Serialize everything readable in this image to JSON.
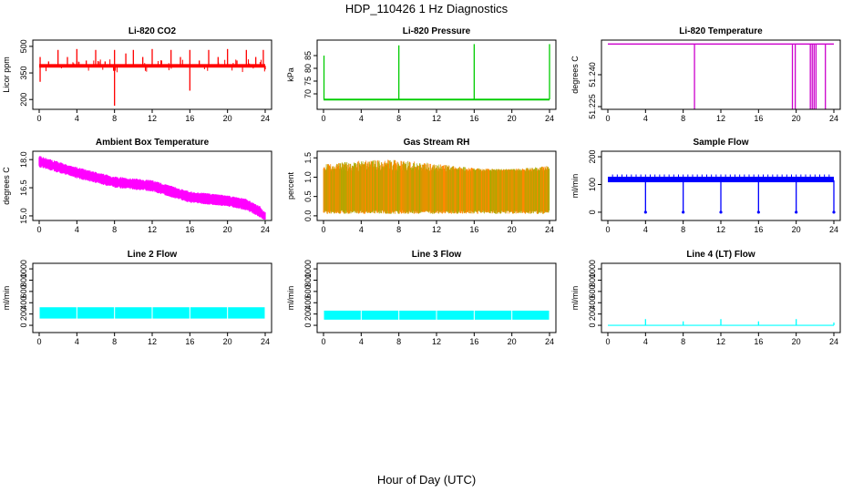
{
  "figure": {
    "title": "HDP_110426  1 Hz Diagnostics",
    "xlabel": "Hour of Day (UTC)"
  },
  "chart_data": [
    {
      "type": "line",
      "title": "Li-820 CO2",
      "ylabel": "Licor ppm",
      "color": "#ff0000",
      "xlim": [
        0,
        24
      ],
      "xticks": [
        0,
        4,
        8,
        12,
        16,
        20,
        24
      ],
      "xtick_labels": [
        "0",
        "4",
        "8",
        "12",
        "16",
        "20",
        "24"
      ],
      "ylim": [
        160,
        520
      ],
      "yticks": [
        200,
        350,
        500
      ],
      "ytick_labels": [
        "200",
        "350",
        "500"
      ],
      "series": [
        {
          "name": "CO2",
          "base": 390,
          "band": [
            380,
            400
          ],
          "spikes": [
            [
              0.1,
              300
            ],
            [
              0.1,
              440
            ],
            [
              1.0,
              415
            ],
            [
              2.0,
              480
            ],
            [
              3.0,
              440
            ],
            [
              4.0,
              485
            ],
            [
              5.0,
              420
            ],
            [
              6.0,
              480
            ],
            [
              7.0,
              415
            ],
            [
              8.0,
              480
            ],
            [
              8.0,
              165
            ],
            [
              9.2,
              460
            ],
            [
              10.0,
              480
            ],
            [
              11.0,
              440
            ],
            [
              12.0,
              485
            ],
            [
              13.0,
              420
            ],
            [
              14.0,
              480
            ],
            [
              15.0,
              440
            ],
            [
              16.0,
              480
            ],
            [
              16.0,
              250
            ],
            [
              17.0,
              420
            ],
            [
              18.0,
              480
            ],
            [
              19.0,
              440
            ],
            [
              20.0,
              485
            ],
            [
              21.0,
              420
            ],
            [
              22.0,
              480
            ],
            [
              23.0,
              440
            ],
            [
              23.8,
              480
            ],
            [
              24.0,
              370
            ]
          ]
        }
      ]
    },
    {
      "type": "line",
      "title": "Li-820 Pressure",
      "ylabel": "kPa",
      "color": "#00cc00",
      "xlim": [
        0,
        24
      ],
      "xticks": [
        0,
        4,
        8,
        12,
        16,
        20,
        24
      ],
      "xtick_labels": [
        "0",
        "4",
        "8",
        "12",
        "16",
        "20",
        "24"
      ],
      "ylim": [
        65,
        90
      ],
      "yticks": [
        70,
        75,
        80,
        85
      ],
      "ytick_labels": [
        "70",
        "75",
        "80",
        "85"
      ],
      "series": [
        {
          "name": "Pressure",
          "base": 67.8,
          "band": [
            67.4,
            68.1
          ],
          "spikes": [
            [
              0.05,
              85
            ],
            [
              8.0,
              89
            ],
            [
              16.0,
              89.5
            ],
            [
              24.0,
              89.5
            ]
          ]
        }
      ]
    },
    {
      "type": "line",
      "title": "Li-820 Temperature",
      "ylabel": "degrees C",
      "color": "#cc00cc",
      "xlim": [
        0,
        24
      ],
      "xticks": [
        0,
        4,
        8,
        12,
        16,
        20,
        24
      ],
      "xtick_labels": [
        "0",
        "4",
        "8",
        "12",
        "16",
        "20",
        "24"
      ],
      "ylim": [
        51.225,
        51.255
      ],
      "yticks": [
        51.225,
        51.24
      ],
      "ytick_labels": [
        "51.225",
        "51.240"
      ],
      "series": [
        {
          "name": "Temperature",
          "base": 51.2544,
          "drops": [
            9.2,
            19.6,
            19.9,
            21.5,
            21.7,
            21.9,
            22.1,
            23.1
          ]
        }
      ]
    },
    {
      "type": "line",
      "title": "Ambient Box Temperature",
      "ylabel": "degrees C",
      "color": "#ff00ff",
      "xlim": [
        0,
        24
      ],
      "xticks": [
        0,
        4,
        8,
        12,
        16,
        20,
        24
      ],
      "xtick_labels": [
        "0",
        "4",
        "8",
        "12",
        "16",
        "20",
        "24"
      ],
      "ylim": [
        14.9,
        18.3
      ],
      "yticks": [
        15.0,
        16.5,
        18.0
      ],
      "ytick_labels": [
        "15.0",
        "16.5",
        "18.0"
      ],
      "series": [
        {
          "name": "Box Temp",
          "trend": [
            [
              0,
              17.9
            ],
            [
              4,
              17.3
            ],
            [
              8,
              16.8
            ],
            [
              12,
              16.6
            ],
            [
              16,
              16.0
            ],
            [
              20,
              15.8
            ],
            [
              22,
              15.6
            ],
            [
              23.5,
              15.2
            ],
            [
              24,
              14.9
            ]
          ],
          "halfwidth": 0.3
        }
      ]
    },
    {
      "type": "line",
      "title": "Gas Stream RH",
      "ylabel": "percent",
      "color": "#ff8800",
      "xlim": [
        0,
        24
      ],
      "xticks": [
        0,
        4,
        8,
        12,
        16,
        20,
        24
      ],
      "xtick_labels": [
        "0",
        "4",
        "8",
        "12",
        "16",
        "20",
        "24"
      ],
      "ylim": [
        -0.05,
        1.6
      ],
      "yticks": [
        0.0,
        0.5,
        1.0,
        1.5
      ],
      "ytick_labels": [
        "0.0",
        "0.5",
        "1.0",
        "1.5"
      ],
      "series": [
        {
          "name": "RH",
          "band": [
            0.15,
            1.15
          ],
          "secondary_color": "#aaaa00"
        }
      ]
    },
    {
      "type": "line",
      "title": "Sample Flow",
      "ylabel": "ml/min",
      "color": "#0000ff",
      "xlim": [
        0,
        24
      ],
      "xticks": [
        0,
        4,
        8,
        12,
        16,
        20,
        24
      ],
      "xtick_labels": [
        "0",
        "4",
        "8",
        "12",
        "16",
        "20",
        "24"
      ],
      "ylim": [
        -20,
        210
      ],
      "yticks": [
        0,
        100,
        200
      ],
      "ytick_labels": [
        "0",
        "100",
        "200"
      ],
      "series": [
        {
          "name": "Sample Flow",
          "base": 115,
          "band": [
            108,
            128
          ],
          "drops": [
            4.0,
            8.0,
            12.0,
            16.0,
            20.0,
            24.0
          ]
        }
      ]
    },
    {
      "type": "line",
      "title": "Line 2 Flow",
      "ylabel": "ml/min",
      "color": "#00ffff",
      "xlim": [
        0,
        24
      ],
      "xticks": [
        0,
        4,
        8,
        12,
        16,
        20,
        24
      ],
      "xtick_labels": [
        "0",
        "4",
        "8",
        "12",
        "16",
        "20",
        "24"
      ],
      "ylim": [
        -80,
        1050
      ],
      "yticks": [
        0,
        200,
        400,
        600,
        800,
        1000
      ],
      "ytick_labels": [
        "0",
        "200",
        "400",
        "600",
        "800",
        "1000"
      ],
      "series": [
        {
          "name": "Line 2",
          "band": [
            120,
            320
          ],
          "gaps": [
            4.0,
            8.0,
            12.0,
            16.0,
            20.0
          ]
        }
      ]
    },
    {
      "type": "line",
      "title": "Line 3 Flow",
      "ylabel": "ml/min",
      "color": "#00ffff",
      "xlim": [
        0,
        24
      ],
      "xticks": [
        0,
        4,
        8,
        12,
        16,
        20,
        24
      ],
      "xtick_labels": [
        "0",
        "4",
        "8",
        "12",
        "16",
        "20",
        "24"
      ],
      "ylim": [
        -80,
        1050
      ],
      "yticks": [
        0,
        200,
        400,
        600,
        800,
        1000
      ],
      "ytick_labels": [
        "0",
        "200",
        "400",
        "600",
        "800",
        "1000"
      ],
      "series": [
        {
          "name": "Line 3",
          "band": [
            100,
            260
          ],
          "gaps": [
            4.0,
            8.0,
            12.0,
            16.0,
            20.0
          ]
        }
      ]
    },
    {
      "type": "line",
      "title": "Line 4 (LT) Flow",
      "ylabel": "ml/min",
      "color": "#00ffff",
      "xlim": [
        0,
        24
      ],
      "xticks": [
        0,
        4,
        8,
        12,
        16,
        20,
        24
      ],
      "xtick_labels": [
        "0",
        "4",
        "8",
        "12",
        "16",
        "20",
        "24"
      ],
      "ylim": [
        -80,
        1050
      ],
      "yticks": [
        0,
        200,
        400,
        600,
        800,
        1000
      ],
      "ytick_labels": [
        "0",
        "200",
        "400",
        "600",
        "800",
        "1000"
      ],
      "series": [
        {
          "name": "Line 4",
          "base": 0,
          "spikes": [
            [
              4.0,
              110
            ],
            [
              8.0,
              70
            ],
            [
              12.0,
              110
            ],
            [
              16.0,
              70
            ],
            [
              20.0,
              110
            ],
            [
              24.0,
              50
            ]
          ]
        }
      ]
    }
  ]
}
